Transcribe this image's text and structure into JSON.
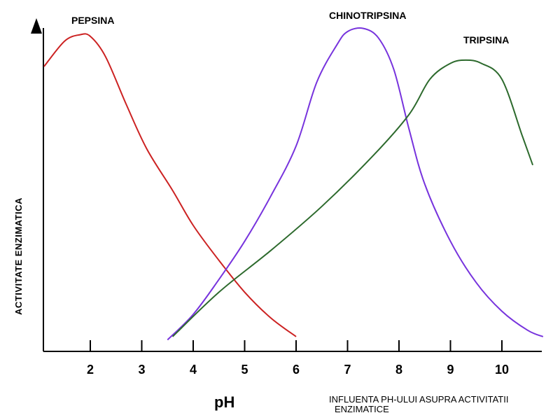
{
  "chart_data": {
    "type": "line",
    "title": "",
    "xlabel": "pH",
    "ylabel": "ACTIVITATE ENZIMATICA",
    "x_tick_labels": [
      "2",
      "3",
      "4",
      "5",
      "6",
      "7",
      "8",
      "9",
      "10"
    ],
    "x_tick_positions": [
      2,
      3,
      4,
      5,
      6,
      7,
      8,
      9,
      10
    ],
    "xlim": [
      1,
      10.8
    ],
    "ylim": [
      0,
      100
    ],
    "y_ticks_shown": false,
    "grid": false,
    "series": [
      {
        "name": "PEPSINA",
        "color": "#cc2222",
        "x": [
          1.1,
          1.5,
          1.8,
          2.0,
          2.3,
          2.7,
          3.1,
          3.6,
          4.0,
          4.5,
          5.0,
          5.5,
          6.0
        ],
        "y": [
          87,
          95,
          97,
          96.5,
          90,
          75,
          61,
          48,
          37,
          26,
          16,
          8,
          2
        ]
      },
      {
        "name": "CHINOTRIPSINA",
        "color": "#7733dd",
        "x": [
          3.5,
          4.0,
          4.5,
          5.0,
          5.5,
          6.0,
          6.4,
          6.8,
          7.0,
          7.3,
          7.6,
          7.9,
          8.2,
          8.5,
          9.0,
          9.5,
          10.0,
          10.5,
          10.8
        ],
        "y": [
          1,
          9,
          20,
          32,
          46,
          62,
          82,
          94,
          98,
          99,
          96,
          86,
          67,
          50,
          32,
          19,
          10,
          4,
          2
        ]
      },
      {
        "name": "TRIPSINA",
        "color": "#2d6a2d",
        "x": [
          3.6,
          4.5,
          5.5,
          6.5,
          7.5,
          8.2,
          8.6,
          9.0,
          9.3,
          9.6,
          10.0,
          10.4,
          10.6
        ],
        "y": [
          2,
          16,
          29,
          43,
          59,
          72,
          83,
          88,
          89,
          88,
          83,
          65,
          56
        ]
      }
    ]
  },
  "caption": {
    "line1": "INFLUENTA PH-ULUI ASUPRA ACTIVITATII",
    "line2": "ENZIMATICE"
  }
}
